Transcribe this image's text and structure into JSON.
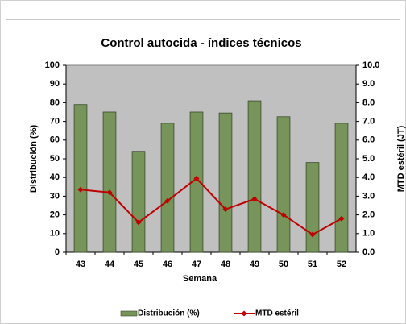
{
  "chart_data": {
    "type": "bar_line",
    "title": "Control autocida - índices técnicos",
    "xlabel": "Semana",
    "ylabel": "Distribución (%)",
    "y2label": "MTD estéril (JT)",
    "categories": [
      "43",
      "44",
      "45",
      "46",
      "47",
      "48",
      "49",
      "50",
      "51",
      "52"
    ],
    "series": [
      {
        "name": "Distribución (%)",
        "type": "bar",
        "color": "#77955b",
        "values": [
          79,
          75,
          54,
          69,
          75,
          74.5,
          81,
          72.5,
          48,
          69
        ]
      },
      {
        "name": "MTD estéril",
        "type": "line",
        "axis": "y2",
        "color": "#c00000",
        "values": [
          3.35,
          3.2,
          1.6,
          2.75,
          3.95,
          2.3,
          2.85,
          2.0,
          0.95,
          1.8
        ]
      }
    ],
    "ylim": [
      0,
      100
    ],
    "yticks": [
      0,
      10,
      20,
      30,
      40,
      50,
      60,
      70,
      80,
      90,
      100
    ],
    "y2lim": [
      0,
      10
    ],
    "y2ticks": [
      {
        "value": 0,
        "label": "0.0"
      },
      {
        "value": 1,
        "label": "1.0"
      },
      {
        "value": 2,
        "label": "2.0"
      },
      {
        "value": 3,
        "label": "3.0"
      },
      {
        "value": 4,
        "label": "4.0"
      },
      {
        "value": 5,
        "label": "5.0"
      },
      {
        "value": 6,
        "label": "6.0"
      },
      {
        "value": 7,
        "label": "7.0"
      },
      {
        "value": 8,
        "label": "8.0"
      },
      {
        "value": 9,
        "label": "9.0"
      },
      {
        "value": 10,
        "label": "10.0"
      }
    ],
    "legend": "bottom"
  }
}
